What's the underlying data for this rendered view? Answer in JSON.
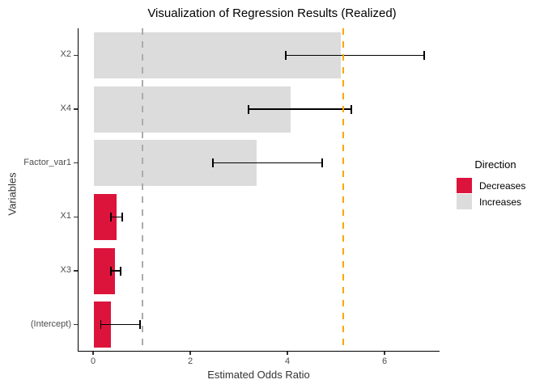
{
  "chart_data": {
    "type": "bar",
    "orientation": "horizontal",
    "title": "Visualization of Regression Results (Realized)",
    "xlabel": "Estimated Odds Ratio",
    "ylabel": "Variables",
    "categories": [
      "X2",
      "X4",
      "Factor_var1",
      "X1",
      "X3",
      "(Intercept)"
    ],
    "values": [
      5.08,
      4.05,
      3.35,
      0.47,
      0.44,
      0.35
    ],
    "ci_low": [
      3.95,
      3.18,
      2.45,
      0.35,
      0.35,
      0.14
    ],
    "ci_high": [
      6.8,
      5.3,
      4.7,
      0.58,
      0.55,
      0.95
    ],
    "direction": [
      "Increases",
      "Increases",
      "Increases",
      "Decreases",
      "Decreases",
      "Decreases"
    ],
    "x_ticks": [
      {
        "value": 0,
        "label": "0"
      },
      {
        "value": 2,
        "label": "2"
      },
      {
        "value": 4,
        "label": "4"
      },
      {
        "value": 6,
        "label": "6"
      }
    ],
    "xlim": [
      -0.32,
      7.13
    ],
    "grid": false,
    "reference_lines": [
      {
        "name": "null-reference-line",
        "value": 1.0,
        "color": "#ABABAB",
        "style": "dashed",
        "width": 2
      },
      {
        "name": "realized-reference-line",
        "value": 5.13,
        "color": "#FFA500",
        "style": "dashed",
        "width": 2.5
      }
    ],
    "legend": {
      "title": "Direction",
      "position": "right",
      "entries": [
        {
          "label": "Decreases",
          "color": "#DC143C"
        },
        {
          "label": "Increases",
          "#comment": "",
          "color": "#DCDCDC"
        }
      ]
    },
    "colors": {
      "decreases_bar": "#DC143C",
      "increases_bar": "#DCDCDC",
      "error_bar": "#000000",
      "axis_line": "#000000",
      "tick_text": "#4d4d4d"
    }
  }
}
